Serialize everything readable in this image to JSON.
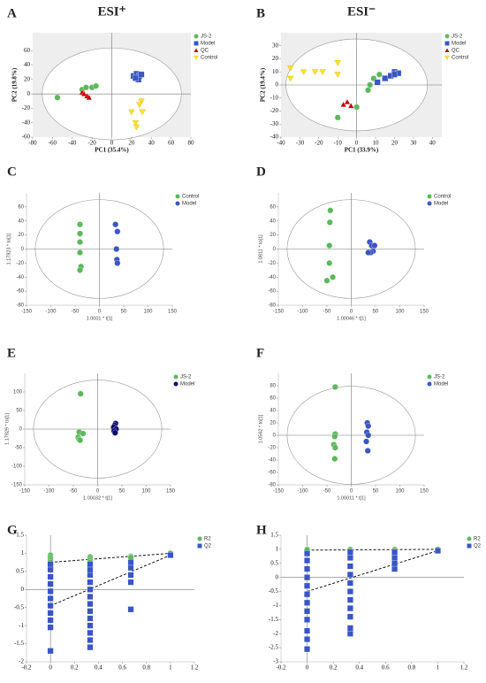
{
  "chart_data": [
    {
      "type": "scatter",
      "label": "A",
      "title": "ESI⁺",
      "xlabel": "PC1 (35.4%)",
      "ylabel": "PC2 (19.8%)",
      "xlim": [
        -80,
        80
      ],
      "ylim": [
        -60,
        85
      ],
      "xticks": [
        -80,
        -60,
        -40,
        -20,
        0,
        20,
        40,
        60,
        80
      ],
      "yticks": [
        -60,
        -40,
        -20,
        0,
        20,
        40,
        60
      ],
      "background": "#eeeeee",
      "ellipse": true,
      "legend": "outside right",
      "series": [
        {
          "name": "JS-2",
          "color": "#5cb85c",
          "marker": "circle",
          "x": [
            -55,
            -30,
            -26,
            -20,
            -16
          ],
          "y": [
            -5,
            6,
            9,
            9,
            11
          ]
        },
        {
          "name": "Model",
          "color": "#3a56c4",
          "marker": "square",
          "x": [
            22,
            25,
            28,
            27,
            24,
            30
          ],
          "y": [
            25,
            28,
            25,
            20,
            22,
            27
          ]
        },
        {
          "name": "QC",
          "color": "#c00000",
          "marker": "triangle",
          "x": [
            -30,
            -28,
            -25,
            -23
          ],
          "y": [
            2,
            0,
            -3,
            -5
          ]
        },
        {
          "name": "Control",
          "color": "#ffe033",
          "marker": "triangle-down",
          "x": [
            30,
            28,
            20,
            31,
            24,
            25
          ],
          "y": [
            -10,
            -15,
            -25,
            -25,
            -40,
            -46
          ]
        }
      ]
    },
    {
      "type": "scatter",
      "label": "B",
      "title": "ESI⁻",
      "xlabel": "PC1 (33.9%)",
      "ylabel": "PC2 (19.4%)",
      "xlim": [
        -40,
        45
      ],
      "ylim": [
        -40,
        40
      ],
      "xticks": [
        -40,
        -30,
        -20,
        -10,
        0,
        10,
        20,
        30,
        40
      ],
      "yticks": [
        -40,
        -30,
        -20,
        -10,
        0,
        10,
        20,
        30
      ],
      "background": "#eeeeee",
      "ellipse": true,
      "legend": "outside right",
      "series": [
        {
          "name": "JS-2",
          "color": "#5cb85c",
          "marker": "circle",
          "x": [
            -10,
            0,
            7,
            9,
            12,
            6
          ],
          "y": [
            -25,
            -17,
            0,
            5,
            8,
            -4
          ]
        },
        {
          "name": "Model",
          "color": "#3a56c4",
          "marker": "square",
          "x": [
            11,
            15,
            18,
            20,
            22,
            20
          ],
          "y": [
            2,
            5,
            7,
            10,
            9,
            8
          ]
        },
        {
          "name": "QC",
          "color": "#c00000",
          "marker": "triangle",
          "x": [
            -7,
            -5,
            -3
          ],
          "y": [
            -15,
            -13,
            -16
          ]
        },
        {
          "name": "Control",
          "color": "#ffe033",
          "marker": "triangle-down",
          "x": [
            -35,
            -35,
            -28,
            -22,
            -18,
            -10,
            -10
          ],
          "y": [
            13,
            5,
            10,
            10,
            10,
            17,
            8
          ]
        }
      ]
    },
    {
      "type": "scatter",
      "label": "C",
      "xlabel": "1.0001 * t[1]",
      "ylabel": "1.17823 * to[1]",
      "xlim": [
        -150,
        150
      ],
      "ylim": [
        -80,
        80
      ],
      "xticks": [
        -150,
        -100,
        -50,
        0,
        50,
        100,
        150
      ],
      "yticks": [
        -80,
        -60,
        -40,
        -20,
        0,
        20,
        40,
        60
      ],
      "ellipse": true,
      "legend": "outside right",
      "series": [
        {
          "name": "Control",
          "color": "#5cb85c",
          "marker": "circle",
          "x": [
            -40,
            -40,
            -40,
            -40,
            -38,
            -40
          ],
          "y": [
            35,
            22,
            10,
            -5,
            -25,
            -30
          ]
        },
        {
          "name": "Model",
          "color": "#3a56c4",
          "marker": "circle",
          "x": [
            33,
            37,
            35,
            36,
            37
          ],
          "y": [
            35,
            25,
            0,
            -15,
            -20
          ]
        }
      ]
    },
    {
      "type": "scatter",
      "label": "D",
      "xlabel": "1.00046 * t[1]",
      "ylabel": "1.0811 * to[1]",
      "xlim": [
        -150,
        150
      ],
      "ylim": [
        -80,
        80
      ],
      "xticks": [
        -150,
        -100,
        -50,
        0,
        50,
        100,
        150
      ],
      "yticks": [
        -80,
        -60,
        -40,
        -20,
        0,
        20,
        40,
        60
      ],
      "ellipse": true,
      "legend": "outside right",
      "series": [
        {
          "name": "Control",
          "color": "#5cb85c",
          "marker": "circle",
          "x": [
            -43,
            -44,
            -45,
            -45,
            -38,
            -50
          ],
          "y": [
            55,
            38,
            5,
            -20,
            -40,
            -45
          ]
        },
        {
          "name": "Model",
          "color": "#3a56c4",
          "marker": "circle",
          "x": [
            38,
            42,
            48,
            45,
            40,
            35
          ],
          "y": [
            10,
            5,
            5,
            -3,
            -5,
            -5
          ]
        }
      ]
    },
    {
      "type": "scatter",
      "label": "E",
      "xlabel": "1.00032 * t[1]",
      "ylabel": "1.17829 * to[1]",
      "xlim": [
        -150,
        150
      ],
      "ylim": [
        -150,
        150
      ],
      "xticks": [
        -150,
        -100,
        -50,
        0,
        50,
        100,
        150
      ],
      "yticks": [
        -150,
        -100,
        -50,
        0,
        50,
        100
      ],
      "ellipse": true,
      "legend": "outside right",
      "series": [
        {
          "name": "JS-2",
          "color": "#5cb85c",
          "marker": "circle",
          "x": [
            -35,
            -38,
            -30,
            -40,
            -38,
            -36
          ],
          "y": [
            95,
            -8,
            -12,
            -22,
            -28,
            -30
          ]
        },
        {
          "name": "Model",
          "color": "#0b0b6b",
          "marker": "circle",
          "x": [
            37,
            35,
            33,
            38,
            34,
            36
          ],
          "y": [
            15,
            10,
            5,
            0,
            -5,
            -10
          ]
        }
      ]
    },
    {
      "type": "scatter",
      "label": "F",
      "xlabel": "1.00011 * t[1]",
      "ylabel": "1.0562 * to[1]",
      "xlim": [
        -150,
        150
      ],
      "ylim": [
        -80,
        100
      ],
      "xticks": [
        -150,
        -100,
        -50,
        0,
        50,
        100,
        150
      ],
      "yticks": [
        -80,
        -60,
        -40,
        -20,
        0,
        20,
        40,
        60,
        80
      ],
      "ellipse": true,
      "legend": "outside right",
      "series": [
        {
          "name": "JS-2",
          "color": "#5cb85c",
          "marker": "circle",
          "x": [
            -33,
            -33,
            -34,
            -36,
            -33,
            -34
          ],
          "y": [
            78,
            2,
            -2,
            -15,
            -20,
            -38
          ]
        },
        {
          "name": "Model",
          "color": "#3a56c4",
          "marker": "circle",
          "x": [
            33,
            35,
            32,
            35,
            31,
            34
          ],
          "y": [
            20,
            15,
            5,
            0,
            -10,
            -25
          ]
        }
      ]
    },
    {
      "type": "scatter",
      "label": "G",
      "xlim": [
        -0.2,
        1.2
      ],
      "ylim": [
        -2,
        1.5
      ],
      "xticks": [
        -0.2,
        0,
        0.2,
        0.4,
        0.6,
        0.8,
        1,
        1.2
      ],
      "yticks": [
        -2,
        -1.5,
        -1,
        -0.5,
        0,
        0.5,
        1,
        1.5
      ],
      "legend": "outside right",
      "axes_at_zero": true,
      "series": [
        {
          "name": "R2",
          "color": "#5cb85c",
          "marker": "circle",
          "x": [
            0,
            0,
            0,
            0,
            0,
            0,
            0.33,
            0.33,
            0.33,
            0.33,
            0.33,
            0.67,
            0.67,
            0.67,
            1
          ],
          "y": [
            0.95,
            0.9,
            0.85,
            0.8,
            0.75,
            0.7,
            0.9,
            0.85,
            0.8,
            0.75,
            0.7,
            0.92,
            0.9,
            0.88,
            1
          ],
          "trend_x": [
            0,
            1
          ],
          "trend_y": [
            0.75,
            1
          ]
        },
        {
          "name": "Q2",
          "color": "#3a56c4",
          "marker": "square",
          "x": [
            0,
            0,
            0,
            0,
            0,
            0,
            0,
            0,
            0,
            0,
            0,
            0.33,
            0.33,
            0.33,
            0.33,
            0.33,
            0.33,
            0.33,
            0.33,
            0.33,
            0.33,
            0.33,
            0.33,
            0.33,
            0.67,
            0.67,
            0.67,
            0.67,
            0.67,
            1
          ],
          "y": [
            -1.7,
            -1.05,
            -0.85,
            -0.65,
            -0.45,
            -0.25,
            -0.05,
            0.15,
            0.35,
            0.55,
            0.7,
            -1.6,
            -1.4,
            -1.2,
            -1.0,
            -0.8,
            -0.6,
            -0.4,
            -0.2,
            0,
            0.2,
            0.4,
            0.55,
            0.7,
            -0.55,
            0.2,
            0.4,
            0.6,
            0.75,
            0.95
          ],
          "trend_x": [
            0,
            1
          ],
          "trend_y": [
            -0.45,
            0.95
          ]
        }
      ]
    },
    {
      "type": "scatter",
      "label": "H",
      "xlim": [
        -0.2,
        1.2
      ],
      "ylim": [
        -3,
        1.5
      ],
      "xticks": [
        -0.2,
        0,
        0.2,
        0.4,
        0.6,
        0.8,
        1,
        1.2
      ],
      "yticks": [
        -3,
        -2.5,
        -2,
        -1.5,
        -1,
        -0.5,
        0,
        0.5,
        1,
        1.5
      ],
      "legend": "outside right",
      "axes_at_zero": true,
      "series": [
        {
          "name": "R2",
          "color": "#5cb85c",
          "marker": "circle",
          "x": [
            0,
            0,
            0.33,
            0.33,
            0.67,
            0.67,
            1
          ],
          "y": [
            1,
            0.97,
            1,
            0.97,
            1,
            0.98,
            1
          ],
          "trend_x": [
            0,
            1
          ],
          "trend_y": [
            0.97,
            1
          ]
        },
        {
          "name": "Q2",
          "color": "#3a56c4",
          "marker": "square",
          "x": [
            0,
            0,
            0,
            0,
            0,
            0,
            0,
            0,
            0,
            0,
            0,
            0,
            0.33,
            0.33,
            0.33,
            0.33,
            0.33,
            0.33,
            0.33,
            0.33,
            0.33,
            0.33,
            0.33,
            0.67,
            0.67,
            0.67,
            0.67,
            1
          ],
          "y": [
            -2.55,
            -2.2,
            -1.9,
            -1.5,
            -1.2,
            -0.9,
            -0.6,
            -0.3,
            0,
            0.3,
            0.6,
            0.85,
            -2.0,
            -1.8,
            -1.4,
            -1.1,
            -0.8,
            -0.5,
            -0.2,
            0.1,
            0.4,
            0.7,
            0.9,
            0.3,
            0.5,
            0.7,
            0.9,
            0.95
          ],
          "trend_x": [
            0,
            1
          ],
          "trend_y": [
            -0.5,
            0.95
          ]
        }
      ]
    }
  ]
}
